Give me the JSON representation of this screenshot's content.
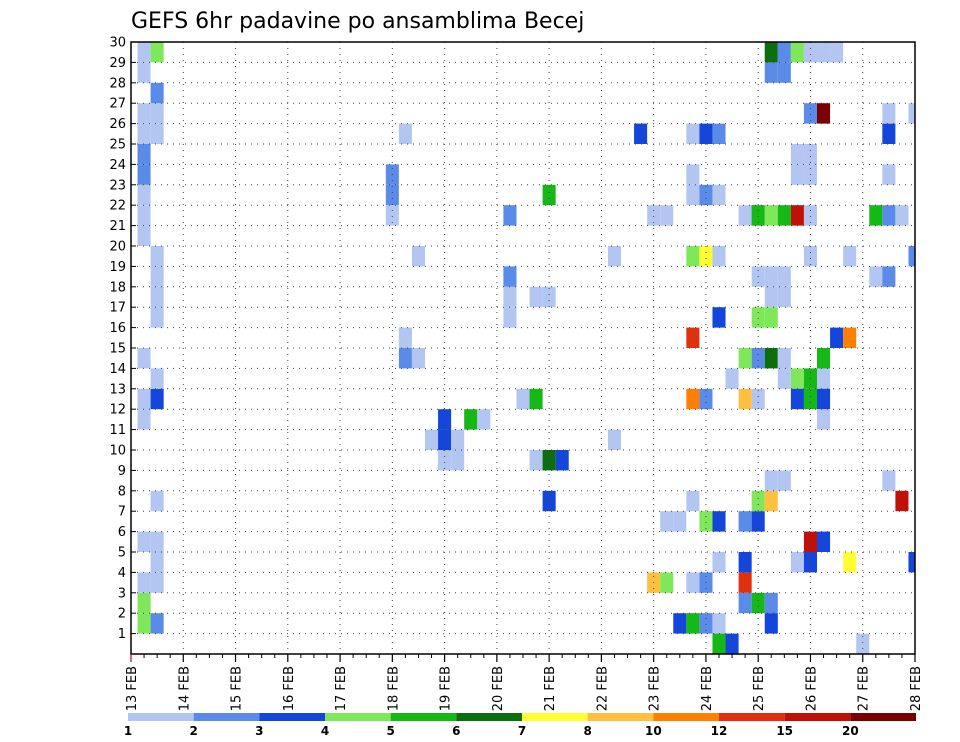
{
  "chart_data": {
    "type": "heatmap",
    "title": "GEFS 6hr padavine po ansamblima Becej",
    "x_tick_labels": [
      "13 FEB",
      "14 FEB",
      "15 FEB",
      "16 FEB",
      "17 FEB",
      "18 FEB",
      "19 FEB",
      "20 FEB",
      "21 FEB",
      "22 FEB",
      "23 FEB",
      "24 FEB",
      "25 FEB",
      "26 FEB",
      "27 FEB",
      "28 FEB"
    ],
    "y_tick_labels": [
      "1",
      "2",
      "3",
      "4",
      "5",
      "6",
      "7",
      "8",
      "9",
      "10",
      "11",
      "12",
      "13",
      "14",
      "15",
      "16",
      "17",
      "18",
      "19",
      "20",
      "21",
      "22",
      "23",
      "24",
      "25",
      "26",
      "27",
      "28",
      "29",
      "30"
    ],
    "xlim": [
      0,
      60
    ],
    "ylim": [
      0,
      30
    ],
    "x_unit": "6-hour steps from 13 FEB 00Z",
    "y_unit": "ensemble member",
    "grid": true,
    "legend": {
      "position": "bottom",
      "bounds": [
        "1",
        "2",
        "3",
        "4",
        "5",
        "6",
        "7",
        "8",
        "10",
        "12",
        "15",
        "20"
      ],
      "colors": [
        "#b3c6f2",
        "#5b8be8",
        "#1446dc",
        "#7fe85a",
        "#16b816",
        "#0c6e0c",
        "#ffff33",
        "#ffc040",
        "#ff8000",
        "#e03010",
        "#c01008",
        "#7a0000"
      ]
    },
    "cells": [
      {
        "x": 1,
        "y": 1.5,
        "c": 3
      },
      {
        "x": 1,
        "y": 2.5,
        "c": 3
      },
      {
        "x": 1,
        "y": 3.5,
        "c": 0
      },
      {
        "x": 1,
        "y": 5.5,
        "c": 0
      },
      {
        "x": 1,
        "y": 11.5,
        "c": 0
      },
      {
        "x": 1,
        "y": 12.5,
        "c": 0
      },
      {
        "x": 1,
        "y": 14.5,
        "c": 0
      },
      {
        "x": 1,
        "y": 20.5,
        "c": 0
      },
      {
        "x": 1,
        "y": 21.5,
        "c": 0
      },
      {
        "x": 1,
        "y": 22.5,
        "c": 0
      },
      {
        "x": 1,
        "y": 23.5,
        "c": 1
      },
      {
        "x": 1,
        "y": 24.5,
        "c": 1
      },
      {
        "x": 1,
        "y": 25.5,
        "c": 0
      },
      {
        "x": 1,
        "y": 26.5,
        "c": 0
      },
      {
        "x": 1,
        "y": 28.5,
        "c": 0
      },
      {
        "x": 1,
        "y": 29.5,
        "c": 0
      },
      {
        "x": 2,
        "y": 1.5,
        "c": 1
      },
      {
        "x": 2,
        "y": 3.5,
        "c": 0
      },
      {
        "x": 2,
        "y": 4.5,
        "c": 0
      },
      {
        "x": 2,
        "y": 5.5,
        "c": 0
      },
      {
        "x": 2,
        "y": 7.5,
        "c": 0
      },
      {
        "x": 2,
        "y": 12.5,
        "c": 2
      },
      {
        "x": 2,
        "y": 13.5,
        "c": 0
      },
      {
        "x": 2,
        "y": 16.5,
        "c": 0
      },
      {
        "x": 2,
        "y": 17.5,
        "c": 0
      },
      {
        "x": 2,
        "y": 18.5,
        "c": 0
      },
      {
        "x": 2,
        "y": 19.5,
        "c": 0
      },
      {
        "x": 2,
        "y": 25.5,
        "c": 0
      },
      {
        "x": 2,
        "y": 26.5,
        "c": 0
      },
      {
        "x": 2,
        "y": 27.5,
        "c": 1
      },
      {
        "x": 2,
        "y": 29.5,
        "c": 3
      },
      {
        "x": 20,
        "y": 22.5,
        "c": 1
      },
      {
        "x": 20,
        "y": 21.5,
        "c": 0
      },
      {
        "x": 20,
        "y": 23.5,
        "c": 1
      },
      {
        "x": 21,
        "y": 25.5,
        "c": 0
      },
      {
        "x": 21,
        "y": 14.5,
        "c": 1
      },
      {
        "x": 21,
        "y": 15.5,
        "c": 0
      },
      {
        "x": 22,
        "y": 14.5,
        "c": 0
      },
      {
        "x": 22,
        "y": 19.5,
        "c": 0
      },
      {
        "x": 23,
        "y": 10.5,
        "c": 0
      },
      {
        "x": 24,
        "y": 9.5,
        "c": 0
      },
      {
        "x": 24,
        "y": 10.5,
        "c": 0
      },
      {
        "x": 24,
        "y": 11.5,
        "c": 2
      },
      {
        "x": 24,
        "y": 10.5,
        "c": 2
      },
      {
        "x": 25,
        "y": 10.5,
        "c": 0
      },
      {
        "x": 25,
        "y": 9.5,
        "c": 0
      },
      {
        "x": 26,
        "y": 11.5,
        "c": 4
      },
      {
        "x": 27,
        "y": 11.5,
        "c": 0
      },
      {
        "x": 29,
        "y": 21.5,
        "c": 1
      },
      {
        "x": 29,
        "y": 18.5,
        "c": 1
      },
      {
        "x": 29,
        "y": 17.5,
        "c": 0
      },
      {
        "x": 29,
        "y": 16.5,
        "c": 0
      },
      {
        "x": 30,
        "y": 12.5,
        "c": 0
      },
      {
        "x": 31,
        "y": 12.5,
        "c": 4
      },
      {
        "x": 31,
        "y": 9.5,
        "c": 0
      },
      {
        "x": 32,
        "y": 9.5,
        "c": 5
      },
      {
        "x": 33,
        "y": 9.5,
        "c": 2
      },
      {
        "x": 31,
        "y": 17.5,
        "c": 0
      },
      {
        "x": 32,
        "y": 17.5,
        "c": 0
      },
      {
        "x": 32,
        "y": 22.5,
        "c": 4
      },
      {
        "x": 32,
        "y": 7.5,
        "c": 2
      },
      {
        "x": 37,
        "y": 10.5,
        "c": 0
      },
      {
        "x": 37,
        "y": 19.5,
        "c": 0
      },
      {
        "x": 38,
        "y": -0.5,
        "c": 5
      },
      {
        "x": 39,
        "y": -0.5,
        "c": 0
      },
      {
        "x": 39,
        "y": 25.5,
        "c": 2
      },
      {
        "x": 40,
        "y": 3.5,
        "c": 7
      },
      {
        "x": 41,
        "y": 3.5,
        "c": 3
      },
      {
        "x": 40,
        "y": 21.5,
        "c": 0
      },
      {
        "x": 41,
        "y": 21.5,
        "c": 0
      },
      {
        "x": 41,
        "y": 6.5,
        "c": 0
      },
      {
        "x": 42,
        "y": 6.5,
        "c": 0
      },
      {
        "x": 42,
        "y": 1.5,
        "c": 2
      },
      {
        "x": 43,
        "y": 1.5,
        "c": 4
      },
      {
        "x": 44,
        "y": 1.5,
        "c": 1
      },
      {
        "x": 45,
        "y": 1.5,
        "c": 0
      },
      {
        "x": 43,
        "y": -0.5,
        "c": 1
      },
      {
        "x": 44,
        "y": -0.5,
        "c": 6
      },
      {
        "x": 45,
        "y": -0.5,
        "c": 0
      },
      {
        "x": 43,
        "y": 3.5,
        "c": 0
      },
      {
        "x": 44,
        "y": 3.5,
        "c": 1
      },
      {
        "x": 43,
        "y": 7.5,
        "c": 0
      },
      {
        "x": 44,
        "y": 6.5,
        "c": 3
      },
      {
        "x": 45,
        "y": 6.5,
        "c": 2
      },
      {
        "x": 43,
        "y": 12.5,
        "c": 8
      },
      {
        "x": 44,
        "y": 12.5,
        "c": 1
      },
      {
        "x": 43,
        "y": 15.5,
        "c": 9
      },
      {
        "x": 45,
        "y": 16.5,
        "c": 2
      },
      {
        "x": 43,
        "y": 19.5,
        "c": 3
      },
      {
        "x": 44,
        "y": 19.5,
        "c": 6
      },
      {
        "x": 45,
        "y": 19.5,
        "c": 0
      },
      {
        "x": 43,
        "y": 22.5,
        "c": 0
      },
      {
        "x": 43,
        "y": 23.5,
        "c": 0
      },
      {
        "x": 44,
        "y": 22.5,
        "c": 1
      },
      {
        "x": 45,
        "y": 22.5,
        "c": 0
      },
      {
        "x": 43,
        "y": 25.5,
        "c": 0
      },
      {
        "x": 44,
        "y": 25.5,
        "c": 2
      },
      {
        "x": 45,
        "y": 25.5,
        "c": 1
      },
      {
        "x": 45,
        "y": 4.5,
        "c": 0
      },
      {
        "x": 45,
        "y": 0.5,
        "c": 4
      },
      {
        "x": 45,
        "y": -0.5,
        "c": 0
      },
      {
        "x": 46,
        "y": 0.5,
        "c": 2
      },
      {
        "x": 46,
        "y": 13.5,
        "c": 0
      },
      {
        "x": 47,
        "y": 2.5,
        "c": 1
      },
      {
        "x": 47,
        "y": 3.5,
        "c": 9
      },
      {
        "x": 47,
        "y": 4.5,
        "c": 2
      },
      {
        "x": 47,
        "y": 6.5,
        "c": 1
      },
      {
        "x": 48,
        "y": 6.5,
        "c": 2
      },
      {
        "x": 47,
        "y": 12.5,
        "c": 7
      },
      {
        "x": 47,
        "y": 14.5,
        "c": 3
      },
      {
        "x": 47,
        "y": 21.5,
        "c": 0
      },
      {
        "x": 48,
        "y": 21.5,
        "c": 1
      },
      {
        "x": 48,
        "y": 2.5,
        "c": 4
      },
      {
        "x": 49,
        "y": 2.5,
        "c": 1
      },
      {
        "x": 48,
        "y": 7.5,
        "c": 3
      },
      {
        "x": 49,
        "y": 7.5,
        "c": 7
      },
      {
        "x": 48,
        "y": 12.5,
        "c": 0
      },
      {
        "x": 48,
        "y": 14.5,
        "c": 1
      },
      {
        "x": 49,
        "y": 14.5,
        "c": 5
      },
      {
        "x": 48,
        "y": 16.5,
        "c": 3
      },
      {
        "x": 49,
        "y": 16.5,
        "c": 3
      },
      {
        "x": 49,
        "y": 17.5,
        "c": 0
      },
      {
        "x": 50,
        "y": 17.5,
        "c": 0
      },
      {
        "x": 48,
        "y": 18.5,
        "c": 0
      },
      {
        "x": 49,
        "y": 18.5,
        "c": 0
      },
      {
        "x": 50,
        "y": 18.5,
        "c": 0
      },
      {
        "x": 48,
        "y": 21.5,
        "c": 4
      },
      {
        "x": 49,
        "y": 21.5,
        "c": 3
      },
      {
        "x": 50,
        "y": 21.5,
        "c": 4
      },
      {
        "x": 51,
        "y": 21.5,
        "c": 10
      },
      {
        "x": 52,
        "y": 21.5,
        "c": 0
      },
      {
        "x": 49,
        "y": 28.5,
        "c": 1
      },
      {
        "x": 50,
        "y": 28.5,
        "c": 1
      },
      {
        "x": 49,
        "y": 29.5,
        "c": 5
      },
      {
        "x": 50,
        "y": 29.5,
        "c": 1
      },
      {
        "x": 49,
        "y": 1.5,
        "c": 2
      },
      {
        "x": 49,
        "y": 8.5,
        "c": 0
      },
      {
        "x": 50,
        "y": 8.5,
        "c": 0
      },
      {
        "x": 50,
        "y": 13.5,
        "c": 0
      },
      {
        "x": 50,
        "y": 14.5,
        "c": 0
      },
      {
        "x": 51,
        "y": 13.5,
        "c": 3
      },
      {
        "x": 52,
        "y": 13.5,
        "c": 4
      },
      {
        "x": 53,
        "y": 13.5,
        "c": 0
      },
      {
        "x": 51,
        "y": 4.5,
        "c": 0
      },
      {
        "x": 52,
        "y": 4.5,
        "c": 2
      },
      {
        "x": 52,
        "y": 5.5,
        "c": 10
      },
      {
        "x": 53,
        "y": 5.5,
        "c": 2
      },
      {
        "x": 51,
        "y": 12.5,
        "c": 2
      },
      {
        "x": 52,
        "y": 12.5,
        "c": 4
      },
      {
        "x": 53,
        "y": 12.5,
        "c": 2
      },
      {
        "x": 51,
        "y": 23.5,
        "c": 0
      },
      {
        "x": 52,
        "y": 23.5,
        "c": 0
      },
      {
        "x": 51,
        "y": 24.5,
        "c": 0
      },
      {
        "x": 52,
        "y": 24.5,
        "c": 0
      },
      {
        "x": 52,
        "y": 19.5,
        "c": 0
      },
      {
        "x": 52,
        "y": 26.5,
        "c": 1
      },
      {
        "x": 53,
        "y": 26.5,
        "c": 11
      },
      {
        "x": 52,
        "y": -0.5,
        "c": 0
      },
      {
        "x": 53,
        "y": 11.5,
        "c": 0
      },
      {
        "x": 53,
        "y": 14.5,
        "c": 4
      },
      {
        "x": 54,
        "y": 15.5,
        "c": 2
      },
      {
        "x": 55,
        "y": 15.5,
        "c": 8
      },
      {
        "x": 51,
        "y": 29.5,
        "c": 3
      },
      {
        "x": 52,
        "y": 29.5,
        "c": 0
      },
      {
        "x": 53,
        "y": 29.5,
        "c": 0
      },
      {
        "x": 54,
        "y": 29.5,
        "c": 0
      },
      {
        "x": 55,
        "y": 19.5,
        "c": 0
      },
      {
        "x": 55,
        "y": 4.5,
        "c": 6
      },
      {
        "x": 56,
        "y": 0.5,
        "c": 0
      },
      {
        "x": 57,
        "y": 18.5,
        "c": 0
      },
      {
        "x": 58,
        "y": 18.5,
        "c": 1
      },
      {
        "x": 57,
        "y": 21.5,
        "c": 4
      },
      {
        "x": 58,
        "y": 21.5,
        "c": 1
      },
      {
        "x": 59,
        "y": 21.5,
        "c": 0
      },
      {
        "x": 58,
        "y": 23.5,
        "c": 0
      },
      {
        "x": 58,
        "y": 25.5,
        "c": 2
      },
      {
        "x": 58,
        "y": 26.5,
        "c": 0
      },
      {
        "x": 58,
        "y": 8.5,
        "c": 0
      },
      {
        "x": 59,
        "y": 7.5,
        "c": 10
      },
      {
        "x": 60,
        "y": 19.5,
        "c": 1
      },
      {
        "x": 60,
        "y": 26.5,
        "c": 0
      },
      {
        "x": 60,
        "y": 4.5,
        "c": 2
      }
    ]
  }
}
